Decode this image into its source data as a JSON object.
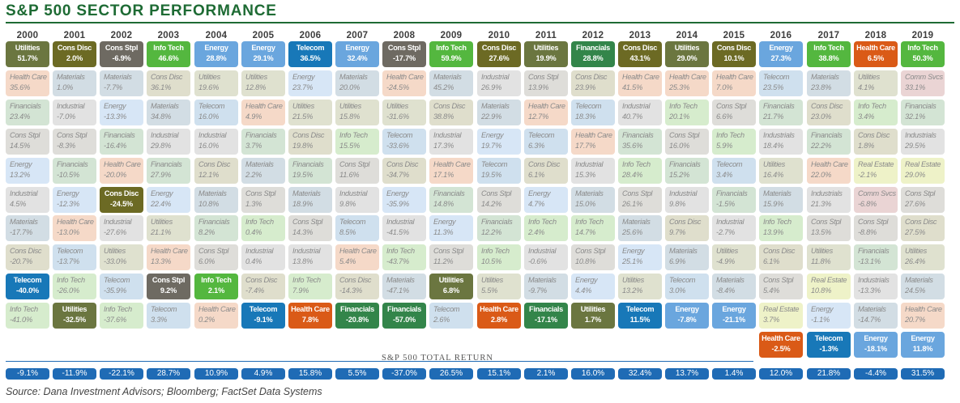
{
  "title": "S&P 500 SECTOR PERFORMANCE",
  "total_label": "S&P 500 TOTAL RETURN",
  "source": "Source: Dana Investment Advisors; Bloomberg; FactSet Data Systems",
  "colors": {
    "Utilities": {
      "solid": "#6b7640",
      "faded": "#dfe1cf"
    },
    "Cons Disc": {
      "solid": "#6c6a24",
      "faded": "#dfdecc"
    },
    "Cons Stpl": {
      "solid": "#6e6a62",
      "faded": "#deddd9"
    },
    "Info Tech": {
      "solid": "#54b73f",
      "faded": "#d6eccd"
    },
    "Energy": {
      "solid": "#6aa6de",
      "faded": "#d7e6f6"
    },
    "Telecom": {
      "solid": "#1878b8",
      "faded": "#cfe0ee"
    },
    "Financials": {
      "solid": "#33854a",
      "faded": "#d3e4d4"
    },
    "Health Care": {
      "solid": "#da5a17",
      "faded": "#f5d9c8"
    },
    "Materials": {
      "solid": "#5d7f94",
      "faded": "#d2dde4"
    },
    "Industrial": {
      "solid": "#8a8a8a",
      "faded": "#e2e2e2"
    },
    "Comm Svcs": {
      "solid": "#b06a6a",
      "faded": "#ead4d4"
    },
    "Real Estate": {
      "solid": "#b9c95a",
      "faded": "#eef2c8"
    },
    "total": "#1f6bb5"
  },
  "chart_data": {
    "type": "table",
    "title": "S&P 500 SECTOR PERFORMANCE",
    "columns": [
      {
        "year": "2000",
        "total": "-9.1%",
        "highlight": [
          "Utilities",
          "Telecom"
        ],
        "rows": [
          [
            "Utilities",
            "51.7%"
          ],
          [
            "Health Care",
            "35.6%"
          ],
          [
            "Financials",
            "23.4%"
          ],
          [
            "Cons Stpl",
            "14.5%"
          ],
          [
            "Energy",
            "13.2%"
          ],
          [
            "Industrial",
            "4.5%"
          ],
          [
            "Materials",
            "-17.7%"
          ],
          [
            "Cons Disc",
            "-20.7%"
          ],
          [
            "Telecom",
            "-40.0%"
          ],
          [
            "Info Tech",
            "-41.0%"
          ]
        ]
      },
      {
        "year": "2001",
        "total": "-11.9%",
        "highlight": [
          "Cons Disc",
          "Utilities"
        ],
        "rows": [
          [
            "Cons Disc",
            "2.0%"
          ],
          [
            "Materials",
            "1.0%"
          ],
          [
            "Industrial",
            "-7.0%"
          ],
          [
            "Cons Stpl",
            "-8.3%"
          ],
          [
            "Financials",
            "-10.5%"
          ],
          [
            "Energy",
            "-12.3%"
          ],
          [
            "Health Care",
            "-13.0%"
          ],
          [
            "Telecom",
            "-13.7%"
          ],
          [
            "Info Tech",
            "-26.0%"
          ],
          [
            "Utilities",
            "-32.5%"
          ]
        ]
      },
      {
        "year": "2002",
        "total": "-22.1%",
        "highlight": [
          "Cons Stpl",
          "Cons Disc"
        ],
        "rows": [
          [
            "Cons Stpl",
            "-6.9%"
          ],
          [
            "Materials",
            "-7.7%"
          ],
          [
            "Energy",
            "-13.3%"
          ],
          [
            "Financials",
            "-16.4%"
          ],
          [
            "Health Care",
            "-20.0%"
          ],
          [
            "Cons Disc",
            "-24.5%"
          ],
          [
            "Industrial",
            "-27.6%"
          ],
          [
            "Utilities",
            "-33.0%"
          ],
          [
            "Telecom",
            "-35.9%"
          ],
          [
            "Info Tech",
            "-37.6%"
          ]
        ]
      },
      {
        "year": "2003",
        "total": "28.7%",
        "highlight": [
          "Info Tech",
          "Cons Stpl"
        ],
        "rows": [
          [
            "Info Tech",
            "46.6%"
          ],
          [
            "Cons Disc",
            "36.1%"
          ],
          [
            "Materials",
            "34.8%"
          ],
          [
            "Industrial",
            "29.8%"
          ],
          [
            "Financials",
            "27.9%"
          ],
          [
            "Energy",
            "22.4%"
          ],
          [
            "Utilities",
            "21.1%"
          ],
          [
            "Health Care",
            "13.3%"
          ],
          [
            "Cons Stpl",
            "9.2%"
          ],
          [
            "Telecom",
            "3.3%"
          ]
        ]
      },
      {
        "year": "2004",
        "total": "10.9%",
        "highlight": [
          "Energy",
          "Info Tech"
        ],
        "rows": [
          [
            "Energy",
            "28.8%"
          ],
          [
            "Utilities",
            "19.6%"
          ],
          [
            "Telecom",
            "16.0%"
          ],
          [
            "Industrial",
            "16.0%"
          ],
          [
            "Cons Disc",
            "12.1%"
          ],
          [
            "Materials",
            "10.8%"
          ],
          [
            "Financials",
            "8.2%"
          ],
          [
            "Cons Stpl",
            "6.0%"
          ],
          [
            "Info Tech",
            "2.1%"
          ],
          [
            "Health Care",
            "0.2%"
          ]
        ]
      },
      {
        "year": "2005",
        "total": "4.9%",
        "highlight": [
          "Energy",
          "Telecom"
        ],
        "rows": [
          [
            "Energy",
            "29.1%"
          ],
          [
            "Utilities",
            "12.8%"
          ],
          [
            "Health Care",
            "4.9%"
          ],
          [
            "Financials",
            "3.7%"
          ],
          [
            "Materials",
            "2.2%"
          ],
          [
            "Cons Stpl",
            "1.3%"
          ],
          [
            "Info Tech",
            "0.4%"
          ],
          [
            "Industrial",
            "0.4%"
          ],
          [
            "Cons Disc",
            "-7.4%"
          ],
          [
            "Telecom",
            "-9.1%"
          ]
        ]
      },
      {
        "year": "2006",
        "total": "15.8%",
        "highlight": [
          "Telecom",
          "Health Care"
        ],
        "rows": [
          [
            "Telecom",
            "36.5%"
          ],
          [
            "Energy",
            "23.7%"
          ],
          [
            "Utilities",
            "21.5%"
          ],
          [
            "Cons Disc",
            "19.8%"
          ],
          [
            "Financials",
            "19.5%"
          ],
          [
            "Materials",
            "18.9%"
          ],
          [
            "Cons Stpl",
            "14.3%"
          ],
          [
            "Industrial",
            "13.8%"
          ],
          [
            "Info Tech",
            "7.9%"
          ],
          [
            "Health Care",
            "7.8%"
          ]
        ]
      },
      {
        "year": "2007",
        "total": "5.5%",
        "highlight": [
          "Energy",
          "Financials"
        ],
        "rows": [
          [
            "Energy",
            "32.4%"
          ],
          [
            "Materials",
            "20.0%"
          ],
          [
            "Utilities",
            "15.8%"
          ],
          [
            "Info Tech",
            "15.5%"
          ],
          [
            "Cons Stpl",
            "11.6%"
          ],
          [
            "Industrial",
            "9.8%"
          ],
          [
            "Telecom",
            "8.5%"
          ],
          [
            "Health Care",
            "5.4%"
          ],
          [
            "Cons Disc",
            "-14.3%"
          ],
          [
            "Financials",
            "-20.8%"
          ]
        ]
      },
      {
        "year": "2008",
        "total": "-37.0%",
        "highlight": [
          "Cons Stpl",
          "Financials"
        ],
        "rows": [
          [
            "Cons Stpl",
            "-17.7%"
          ],
          [
            "Health Care",
            "-24.5%"
          ],
          [
            "Utilities",
            "-31.6%"
          ],
          [
            "Telecom",
            "-33.6%"
          ],
          [
            "Cons Disc",
            "-34.7%"
          ],
          [
            "Energy",
            "-35.9%"
          ],
          [
            "Industrial",
            "-41.5%"
          ],
          [
            "Info Tech",
            "-43.7%"
          ],
          [
            "Materials",
            "-47.1%"
          ],
          [
            "Financials",
            "-57.0%"
          ]
        ]
      },
      {
        "year": "2009",
        "total": "26.5%",
        "highlight": [
          "Info Tech",
          "Utilities"
        ],
        "rows": [
          [
            "Info Tech",
            "59.9%"
          ],
          [
            "Materials",
            "45.2%"
          ],
          [
            "Cons Disc",
            "38.8%"
          ],
          [
            "Industrial",
            "17.3%"
          ],
          [
            "Health Care",
            "17.1%"
          ],
          [
            "Financials",
            "14.8%"
          ],
          [
            "Energy",
            "11.3%"
          ],
          [
            "Cons Stpl",
            "11.2%"
          ],
          [
            "Utilities",
            "6.8%"
          ],
          [
            "Telecom",
            "2.6%"
          ]
        ]
      },
      {
        "year": "2010",
        "total": "15.1%",
        "highlight": [
          "Cons Disc",
          "Health Care"
        ],
        "rows": [
          [
            "Cons Disc",
            "27.6%"
          ],
          [
            "Industrial",
            "26.9%"
          ],
          [
            "Materials",
            "22.9%"
          ],
          [
            "Energy",
            "19.7%"
          ],
          [
            "Telecom",
            "19.5%"
          ],
          [
            "Cons Stpl",
            "14.2%"
          ],
          [
            "Financials",
            "12.2%"
          ],
          [
            "Info Tech",
            "10.5%"
          ],
          [
            "Utilities",
            "5.5%"
          ],
          [
            "Health Care",
            "2.8%"
          ]
        ]
      },
      {
        "year": "2011",
        "total": "2.1%",
        "highlight": [
          "Utilities",
          "Financials"
        ],
        "rows": [
          [
            "Utilities",
            "19.9%"
          ],
          [
            "Cons Stpl",
            "13.9%"
          ],
          [
            "Health Care",
            "12.7%"
          ],
          [
            "Telecom",
            "6.3%"
          ],
          [
            "Cons Disc",
            "6.1%"
          ],
          [
            "Energy",
            "4.7%"
          ],
          [
            "Info Tech",
            "2.4%"
          ],
          [
            "Industrial",
            "-0.6%"
          ],
          [
            "Materials",
            "-9.7%"
          ],
          [
            "Financials",
            "-17.1%"
          ]
        ]
      },
      {
        "year": "2012",
        "total": "16.0%",
        "highlight": [
          "Financials",
          "Utilities"
        ],
        "rows": [
          [
            "Financials",
            "28.8%"
          ],
          [
            "Cons Disc",
            "23.9%"
          ],
          [
            "Telecom",
            "18.3%"
          ],
          [
            "Health Care",
            "17.7%"
          ],
          [
            "Industrial",
            "15.3%"
          ],
          [
            "Materials",
            "15.0%"
          ],
          [
            "Info Tech",
            "14.7%"
          ],
          [
            "Cons Stpl",
            "10.8%"
          ],
          [
            "Energy",
            "4.4%"
          ],
          [
            "Utilities",
            "1.7%"
          ]
        ]
      },
      {
        "year": "2013",
        "total": "32.4%",
        "highlight": [
          "Cons Disc",
          "Telecom"
        ],
        "rows": [
          [
            "Cons Disc",
            "43.1%"
          ],
          [
            "Health Care",
            "41.5%"
          ],
          [
            "Industrial",
            "40.7%"
          ],
          [
            "Financials",
            "35.6%"
          ],
          [
            "Info Tech",
            "28.4%"
          ],
          [
            "Cons Stpl",
            "26.1%"
          ],
          [
            "Materials",
            "25.6%"
          ],
          [
            "Energy",
            "25.1%"
          ],
          [
            "Utilities",
            "13.2%"
          ],
          [
            "Telecom",
            "11.5%"
          ]
        ]
      },
      {
        "year": "2014",
        "total": "13.7%",
        "highlight": [
          "Utilities",
          "Energy"
        ],
        "rows": [
          [
            "Utilities",
            "29.0%"
          ],
          [
            "Health Care",
            "25.3%"
          ],
          [
            "Info Tech",
            "20.1%"
          ],
          [
            "Cons Stpl",
            "16.0%"
          ],
          [
            "Financials",
            "15.2%"
          ],
          [
            "Industrial",
            "9.8%"
          ],
          [
            "Cons Disc",
            "9.7%"
          ],
          [
            "Materials",
            "6.9%"
          ],
          [
            "Telecom",
            "3.0%"
          ],
          [
            "Energy",
            "-7.8%"
          ]
        ]
      },
      {
        "year": "2015",
        "total": "1.4%",
        "highlight": [
          "Cons Disc",
          "Energy"
        ],
        "rows": [
          [
            "Cons Disc",
            "10.1%"
          ],
          [
            "Health Care",
            "7.0%"
          ],
          [
            "Cons Stpl",
            "6.6%"
          ],
          [
            "Info Tech",
            "5.9%"
          ],
          [
            "Telecom",
            "3.4%"
          ],
          [
            "Financials",
            "-1.5%"
          ],
          [
            "Industrial",
            "-2.7%"
          ],
          [
            "Utilities",
            "-4.9%"
          ],
          [
            "Materials",
            "-8.4%"
          ],
          [
            "Energy",
            "-21.1%"
          ]
        ]
      },
      {
        "year": "2016",
        "total": "12.0%",
        "highlight": [
          "Energy",
          "Health Care"
        ],
        "rows": [
          [
            "Energy",
            "27.3%"
          ],
          [
            "Telecom",
            "23.5%"
          ],
          [
            "Financials",
            "21.7%"
          ],
          [
            "Industrials",
            "18.4%"
          ],
          [
            "Utilities",
            "16.4%"
          ],
          [
            "Materials",
            "15.9%"
          ],
          [
            "Info Tech",
            "13.9%"
          ],
          [
            "Cons Disc",
            "6.1%"
          ],
          [
            "Cons Stpl",
            "5.4%"
          ],
          [
            "Real Estate",
            "3.7%"
          ],
          [
            "Health Care",
            "-2.5%"
          ]
        ]
      },
      {
        "year": "2017",
        "total": "21.8%",
        "highlight": [
          "Info Tech",
          "Telecom"
        ],
        "rows": [
          [
            "Info Tech",
            "38.8%"
          ],
          [
            "Materials",
            "23.8%"
          ],
          [
            "Cons Disc",
            "23.0%"
          ],
          [
            "Financials",
            "22.2%"
          ],
          [
            "Health Care",
            "22.0%"
          ],
          [
            "Industrials",
            "21.3%"
          ],
          [
            "Cons Stpl",
            "13.5%"
          ],
          [
            "Utilities",
            "11.8%"
          ],
          [
            "Real Estate",
            "10.8%"
          ],
          [
            "Energy",
            "-1.1%"
          ],
          [
            "Telecom",
            "-1.3%"
          ]
        ]
      },
      {
        "year": "2018",
        "total": "-4.4%",
        "highlight": [
          "Health Care",
          "Energy"
        ],
        "rows": [
          [
            "Health Care",
            "6.5%"
          ],
          [
            "Utilities",
            "4.1%"
          ],
          [
            "Info Tech",
            "3.4%"
          ],
          [
            "Cons Disc",
            "1.8%"
          ],
          [
            "Real Estate",
            "-2.1%"
          ],
          [
            "Comm Svcs",
            "-6.8%"
          ],
          [
            "Cons Stpl",
            "-8.8%"
          ],
          [
            "Financials",
            "-13.1%"
          ],
          [
            "Industrials",
            "-13.3%"
          ],
          [
            "Materials",
            "-14.7%"
          ],
          [
            "Energy",
            "-18.1%"
          ]
        ]
      },
      {
        "year": "2019",
        "total": "31.5%",
        "highlight": [
          "Info Tech",
          "Energy"
        ],
        "rows": [
          [
            "Info Tech",
            "50.3%"
          ],
          [
            "Comm Svcs",
            "33.1%"
          ],
          [
            "Financials",
            "32.1%"
          ],
          [
            "Industrials",
            "29.5%"
          ],
          [
            "Real Estate",
            "29.0%"
          ],
          [
            "Cons Stpl",
            "27.6%"
          ],
          [
            "Cons Disc",
            "27.5%"
          ],
          [
            "Utilities",
            "26.4%"
          ],
          [
            "Materials",
            "24.5%"
          ],
          [
            "Health Care",
            "20.7%"
          ],
          [
            "Energy",
            "11.8%"
          ]
        ]
      }
    ]
  }
}
